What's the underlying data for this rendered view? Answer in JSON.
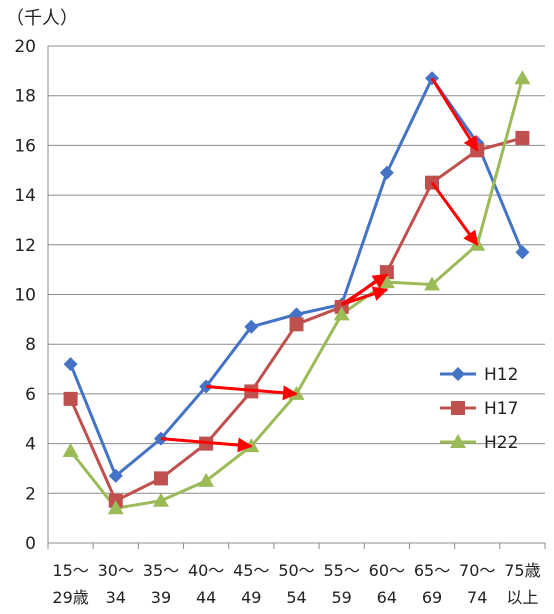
{
  "chart_data": {
    "type": "line",
    "unit_label": "（千人）",
    "ylim": [
      0,
      20
    ],
    "y_ticks": [
      "0",
      "2",
      "4",
      "6",
      "8",
      "10",
      "12",
      "14",
      "16",
      "18",
      "20"
    ],
    "grid": "horizontal",
    "legend_position": "right",
    "categories": [
      [
        "15～",
        "29歳"
      ],
      [
        "30～",
        "34"
      ],
      [
        "35～",
        "39"
      ],
      [
        "40～",
        "44"
      ],
      [
        "45～",
        "49"
      ],
      [
        "50～",
        "54"
      ],
      [
        "55～",
        "59"
      ],
      [
        "60～",
        "64"
      ],
      [
        "65～",
        "69"
      ],
      [
        "70～",
        "74"
      ],
      [
        "75歳",
        "以上"
      ]
    ],
    "series": [
      {
        "name": "H12",
        "color": "#4472C4",
        "marker": "diamond",
        "values": [
          7.2,
          2.7,
          4.2,
          6.3,
          8.7,
          9.2,
          9.6,
          14.9,
          18.7,
          16.1,
          11.7
        ]
      },
      {
        "name": "H17",
        "color": "#C0504D",
        "marker": "square",
        "values": [
          5.8,
          1.7,
          2.6,
          4.0,
          6.1,
          8.8,
          9.5,
          10.9,
          14.5,
          15.8,
          16.3
        ]
      },
      {
        "name": "H22",
        "color": "#9BBB59",
        "marker": "triangle",
        "values": [
          3.7,
          1.4,
          1.7,
          2.5,
          3.9,
          6.0,
          9.2,
          10.5,
          10.4,
          12.0,
          18.7
        ]
      }
    ],
    "arrows": {
      "color": "#FF0000",
      "items": [
        {
          "from": [
            "35～39",
            4.2
          ],
          "to": [
            "45～49",
            3.9
          ]
        },
        {
          "from": [
            "40～44",
            6.3
          ],
          "to": [
            "50～54",
            6.0
          ]
        },
        {
          "from": [
            "55～59",
            9.6
          ],
          "to": [
            "60～64",
            10.8
          ]
        },
        {
          "from": [
            "55～59",
            9.6
          ],
          "to": [
            "60～64",
            10.2
          ]
        },
        {
          "from": [
            "65～69",
            18.7
          ],
          "to": [
            "70～74",
            15.8
          ]
        },
        {
          "from": [
            "65～69",
            14.5
          ],
          "to": [
            "70～74",
            12.0
          ]
        }
      ]
    }
  }
}
